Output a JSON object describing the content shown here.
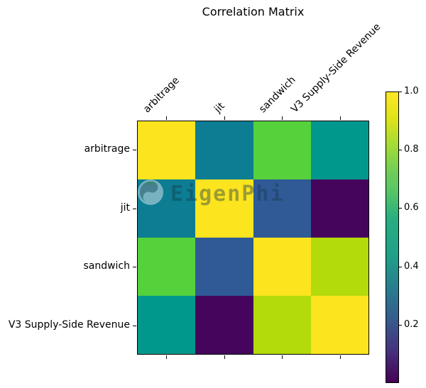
{
  "title": "Correlation Matrix",
  "watermark": {
    "text": "EigenPhi"
  },
  "chart_data": {
    "type": "heatmap",
    "title": "Correlation Matrix",
    "categories": [
      "arbitrage",
      "jit",
      "sandwich",
      "V3 Supply-Side Revenue"
    ],
    "matrix": [
      [
        1.0,
        0.4,
        0.72,
        0.5
      ],
      [
        0.4,
        1.0,
        0.27,
        0.02
      ],
      [
        0.72,
        0.27,
        1.0,
        0.8
      ],
      [
        0.5,
        0.02,
        0.8,
        1.0
      ]
    ],
    "cell_colors": [
      [
        "#fce41e",
        "#0c7d92",
        "#55d13c",
        "#00988c"
      ],
      [
        "#0c7d92",
        "#fce41e",
        "#2f5a96",
        "#45055c"
      ],
      [
        "#55d13c",
        "#2f5a96",
        "#fce41e",
        "#b3da0b"
      ],
      [
        "#00988c",
        "#45055c",
        "#b3da0b",
        "#fce41e"
      ]
    ],
    "colormap": "viridis",
    "grid": false,
    "x_labels_position": "top",
    "x_labels_rotation": 45,
    "colorbar": {
      "position": "right",
      "vmin": 0.0,
      "vmax": 1.0,
      "tick_labels": [
        "1.0",
        "0.8",
        "0.6",
        "0.4",
        "0.2"
      ],
      "color_top": "#fde725",
      "color_bottom": "#440154"
    }
  },
  "colors": {
    "background": "#ffffff",
    "axis": "#000000",
    "watermark_text": "rgba(24,58,76,0.42)"
  }
}
